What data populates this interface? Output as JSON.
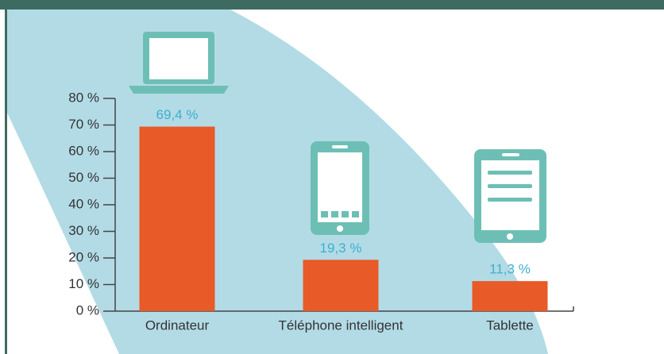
{
  "chart_data": {
    "type": "bar",
    "categories": [
      "Ordinateur",
      "Téléphone intelligent",
      "Tablette"
    ],
    "values": [
      69.4,
      19.3,
      11.3
    ],
    "value_labels": [
      "69,4 %",
      "19,3 %",
      "11,3 %"
    ],
    "color": "#e85a27",
    "ylim": [
      0,
      80
    ],
    "yticks": [
      {
        "value": 0,
        "label": "0 %"
      },
      {
        "value": 10,
        "label": "10 %"
      },
      {
        "value": 20,
        "label": "20 %"
      },
      {
        "value": 30,
        "label": "30 %"
      },
      {
        "value": 40,
        "label": "40 %"
      },
      {
        "value": 50,
        "label": "50 %"
      },
      {
        "value": 60,
        "label": "60 %"
      },
      {
        "value": 70,
        "label": "70 %"
      },
      {
        "value": 80,
        "label": "80 %"
      }
    ]
  }
}
